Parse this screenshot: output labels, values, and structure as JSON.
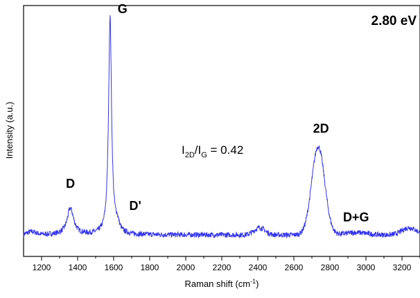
{
  "chart_data": {
    "type": "line",
    "title": "",
    "xlabel": "Raman shift (cm",
    "xlabel_sup": "-1",
    "xlabel_end": ")",
    "ylabel": "Intensity (a.u.)",
    "xlim": [
      1100,
      3300
    ],
    "ylim": [
      0,
      1.05
    ],
    "x_ticks": [
      "1200",
      "1400",
      "1600",
      "1800",
      "2000",
      "2200",
      "2400",
      "2600",
      "2800",
      "3000",
      "3200"
    ],
    "y_ticks_labeled": false,
    "grid": false,
    "legend": "none",
    "series_color": "#3333ee",
    "peaks": [
      {
        "label": "D",
        "position": 1360,
        "intensity": 0.2
      },
      {
        "label": "G",
        "position": 1580,
        "intensity": 1.0
      },
      {
        "label": "D'",
        "position": 1620,
        "intensity": 0.16
      },
      {
        "label": "2D",
        "position": 2735,
        "intensity": 0.46
      },
      {
        "label": "D+G",
        "position": 2945,
        "intensity": 0.1
      }
    ],
    "baseline": 0.09,
    "annotations": {
      "energy": "2.80 eV",
      "ratio_main": "I",
      "ratio_sub_1": "2D",
      "ratio_mid": "/I",
      "ratio_sub_2": "G",
      "ratio_value": " = 0.42"
    }
  }
}
